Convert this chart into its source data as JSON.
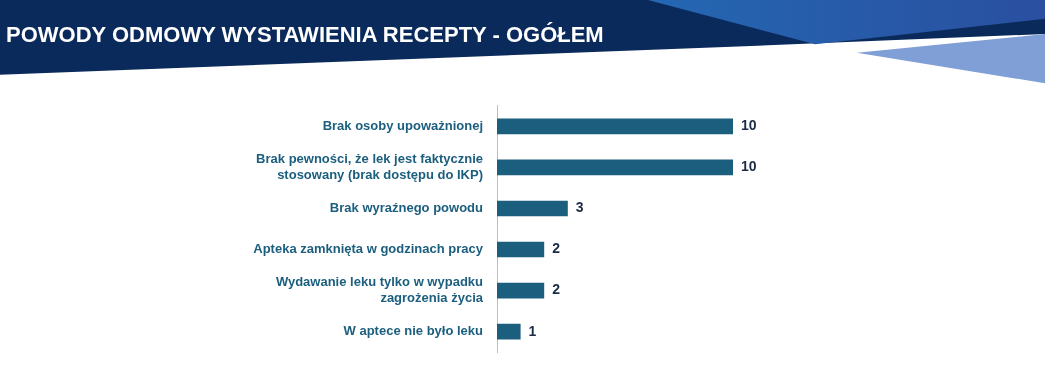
{
  "chart_data": {
    "type": "bar",
    "orientation": "horizontal",
    "title": "POWODY ODMOWY WYSTAWIENIA RECEPTY - OGÓŁEM",
    "categories": [
      "Brak osoby upoważnionej",
      "Brak pewności, że lek jest faktycznie stosowany (brak dostępu do IKP)",
      "Brak wyraźnego powodu",
      "Apteka zamknięta w godzinach pracy",
      "Wydawanie leku tylko w wypadku zagrożenia życia",
      "W aptece nie było leku"
    ],
    "values": [
      10,
      10,
      3,
      2,
      2,
      1
    ],
    "color": "#1b5e7e",
    "data_labels": true,
    "grid": false,
    "legend": false
  }
}
